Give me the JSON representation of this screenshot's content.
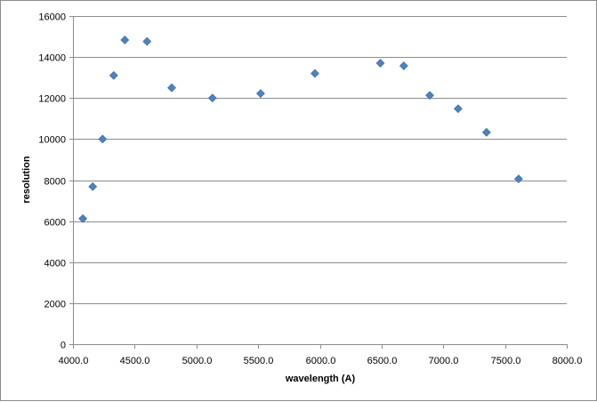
{
  "chart_data": {
    "type": "scatter",
    "title": "",
    "xlabel": "wavelength (A)",
    "ylabel": "resolution",
    "xlim": [
      4000,
      8000
    ],
    "ylim": [
      0,
      16000
    ],
    "x_ticks": [
      "4000.0",
      "4500.0",
      "5000.0",
      "5500.0",
      "6000.0",
      "6500.0",
      "7000.0",
      "7500.0",
      "8000.0"
    ],
    "x_tick_values": [
      4000,
      4500,
      5000,
      5500,
      6000,
      6500,
      7000,
      7500,
      8000
    ],
    "y_ticks": [
      "0",
      "2000",
      "4000",
      "6000",
      "8000",
      "10000",
      "12000",
      "14000",
      "16000"
    ],
    "y_tick_values": [
      0,
      2000,
      4000,
      6000,
      8000,
      10000,
      12000,
      14000,
      16000
    ],
    "grid": "horizontal",
    "legend": "none",
    "marker": "diamond",
    "marker_color": "#4f81bd",
    "points": [
      {
        "x": 4080,
        "y": 6120
      },
      {
        "x": 4160,
        "y": 7680
      },
      {
        "x": 4240,
        "y": 10000
      },
      {
        "x": 4330,
        "y": 13100
      },
      {
        "x": 4420,
        "y": 14830
      },
      {
        "x": 4600,
        "y": 14760
      },
      {
        "x": 4800,
        "y": 12500
      },
      {
        "x": 5130,
        "y": 12000
      },
      {
        "x": 5520,
        "y": 12220
      },
      {
        "x": 5960,
        "y": 13200
      },
      {
        "x": 6490,
        "y": 13700
      },
      {
        "x": 6680,
        "y": 13570
      },
      {
        "x": 6890,
        "y": 12130
      },
      {
        "x": 7120,
        "y": 11480
      },
      {
        "x": 7350,
        "y": 10330
      },
      {
        "x": 7610,
        "y": 8060
      }
    ]
  }
}
